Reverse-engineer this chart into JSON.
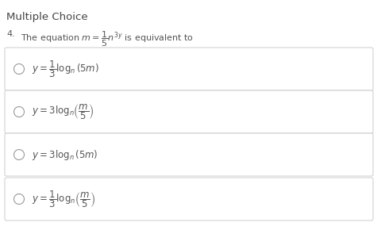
{
  "title": "Multiple Choice",
  "question_number": "4.",
  "question_text": "The equation $m = \\dfrac{1}{5}n^{3y}$ is equivalent to",
  "options": [
    "$y = \\dfrac{1}{3}\\log_n(5m)$",
    "$y = 3\\log_n\\!\\left(\\dfrac{m}{5}\\right)$",
    "$y = 3\\log_n(5m)$",
    "$y = \\dfrac{1}{3}\\log_n\\!\\left(\\dfrac{m}{5}\\right)$"
  ],
  "bg_color": "#ffffff",
  "text_color": "#555555",
  "title_color": "#444444",
  "box_edge_color": "#cccccc",
  "box_face_color": "#ffffff",
  "radio_color": "#999999",
  "font_size_title": 9.5,
  "font_size_question": 8.0,
  "font_size_option": 8.5
}
